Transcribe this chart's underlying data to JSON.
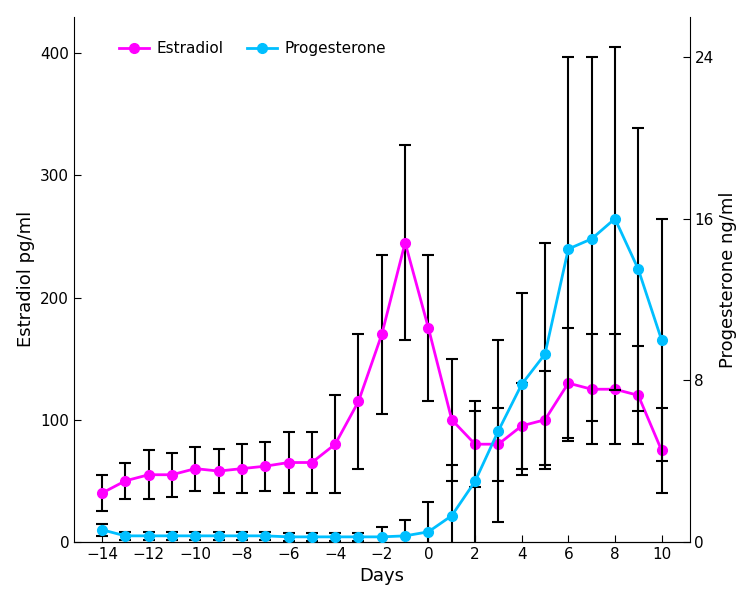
{
  "days": [
    -14,
    -13,
    -12,
    -11,
    -10,
    -9,
    -8,
    -7,
    -6,
    -5,
    -4,
    -3,
    -2,
    -1,
    0,
    1,
    2,
    3,
    4,
    5,
    6,
    7,
    8,
    9,
    10
  ],
  "estradiol": [
    40,
    50,
    55,
    55,
    60,
    58,
    60,
    62,
    65,
    65,
    80,
    115,
    170,
    245,
    175,
    100,
    80,
    80,
    95,
    100,
    130,
    125,
    125,
    120,
    75
  ],
  "estradiol_err": [
    15,
    15,
    20,
    18,
    18,
    18,
    20,
    20,
    25,
    25,
    40,
    55,
    65,
    80,
    60,
    50,
    35,
    30,
    35,
    40,
    45,
    45,
    45,
    40,
    35
  ],
  "progesterone": [
    0.6,
    0.3,
    0.3,
    0.3,
    0.3,
    0.3,
    0.3,
    0.3,
    0.25,
    0.25,
    0.25,
    0.25,
    0.25,
    0.3,
    0.5,
    1.3,
    3.0,
    5.5,
    7.8,
    9.3,
    14.5,
    15.0,
    16.0,
    13.5,
    10.0
  ],
  "progesterone_err": [
    0.3,
    0.2,
    0.2,
    0.2,
    0.2,
    0.2,
    0.2,
    0.2,
    0.2,
    0.2,
    0.2,
    0.2,
    0.5,
    0.8,
    1.5,
    2.5,
    3.5,
    4.5,
    4.5,
    5.5,
    9.5,
    9.0,
    8.5,
    7.0,
    6.0
  ],
  "estradiol_color": "#FF00FF",
  "progesterone_color": "#00BFFF",
  "ylabel_left": "Estradiol pg/ml",
  "ylabel_right": "Progesterone ng/ml",
  "xlabel": "Days",
  "ylim_left": [
    0,
    430
  ],
  "ylim_right": [
    0,
    26
  ],
  "yticks_left": [
    0,
    100,
    200,
    300,
    400
  ],
  "yticks_right": [
    0,
    8,
    16,
    24
  ],
  "xticks": [
    -14,
    -12,
    -10,
    -8,
    -6,
    -4,
    -2,
    0,
    2,
    4,
    6,
    8,
    10
  ],
  "legend_labels": [
    "Estradiol",
    "Progesterone"
  ],
  "background_color": "#ffffff",
  "elinewidth": 1.5,
  "capsize": 4,
  "linewidth": 2.0,
  "markersize": 7
}
